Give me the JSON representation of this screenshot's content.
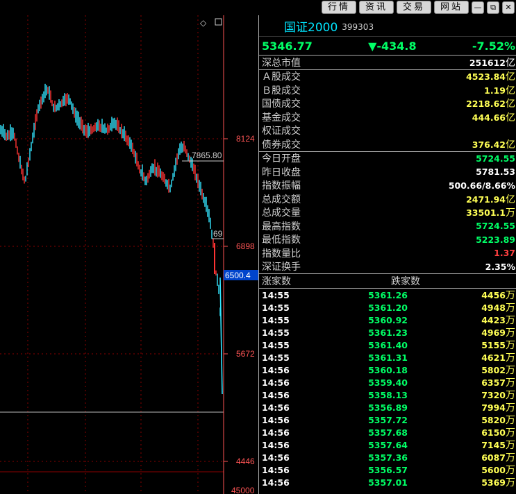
{
  "menu": {
    "quotes": "行情",
    "news": "资讯",
    "trade": "交易",
    "web": "网站"
  },
  "window": {
    "minimize": "—",
    "restore": "⧉",
    "close": "✕"
  },
  "chart": {
    "diamond": "◇",
    "y_labels": [
      "8124",
      "6898",
      "5672",
      "4446",
      "45000"
    ],
    "annotations": {
      "high": "7865.80",
      "low_partial": "69",
      "current": "6500.4"
    }
  },
  "header": {
    "name": "国证2000",
    "code": "399303"
  },
  "quote": {
    "price": "5346.77",
    "change": "▼-434.8",
    "pct": "-7.52%"
  },
  "market_value": {
    "label": "深总市值",
    "value": "251612",
    "unit": "亿"
  },
  "turnover": [
    {
      "label": "Ａ股成交",
      "value": "4523.84",
      "unit": "亿"
    },
    {
      "label": "Ｂ股成交",
      "value": "1.19",
      "unit": "亿"
    },
    {
      "label": "国债成交",
      "value": "2218.62",
      "unit": "亿"
    },
    {
      "label": "基金成交",
      "value": "444.66",
      "unit": "亿"
    },
    {
      "label": "权证成交",
      "value": "",
      "unit": ""
    },
    {
      "label": "债券成交",
      "value": "376.42",
      "unit": "亿"
    }
  ],
  "stats": [
    {
      "label": "今日开盘",
      "value": "5724.55",
      "unit": "",
      "color": "green"
    },
    {
      "label": "昨日收盘",
      "value": "5781.53",
      "unit": "",
      "color": "white"
    },
    {
      "label": "指数振幅",
      "value": "500.66/8.66%",
      "unit": "",
      "color": "white"
    },
    {
      "label": "总成交额",
      "value": "2471.94",
      "unit": "亿",
      "color": "yellow"
    },
    {
      "label": "总成交量",
      "value": "33501.1",
      "unit": "万",
      "color": "yellow"
    },
    {
      "label": "最高指数",
      "value": "5724.55",
      "unit": "",
      "color": "green"
    },
    {
      "label": "最低指数",
      "value": "5223.89",
      "unit": "",
      "color": "green"
    },
    {
      "label": "指数量比",
      "value": "1.37",
      "unit": "",
      "color": "red"
    },
    {
      "label": "深证换手",
      "value": "2.35%",
      "unit": "",
      "color": "white"
    }
  ],
  "ticks_header": {
    "up": "涨家数",
    "down": "跌家数"
  },
  "ticks": [
    {
      "time": "14:55",
      "price": "5361.26",
      "vol": "4456",
      "unit": "万"
    },
    {
      "time": "14:55",
      "price": "5361.20",
      "vol": "4948",
      "unit": "万"
    },
    {
      "time": "14:55",
      "price": "5360.92",
      "vol": "4423",
      "unit": "万"
    },
    {
      "time": "14:55",
      "price": "5361.23",
      "vol": "4969",
      "unit": "万"
    },
    {
      "time": "14:55",
      "price": "5361.40",
      "vol": "5155",
      "unit": "万"
    },
    {
      "time": "14:55",
      "price": "5361.31",
      "vol": "4621",
      "unit": "万"
    },
    {
      "time": "14:56",
      "price": "5360.18",
      "vol": "5802",
      "unit": "万"
    },
    {
      "time": "14:56",
      "price": "5359.40",
      "vol": "6357",
      "unit": "万"
    },
    {
      "time": "14:56",
      "price": "5358.13",
      "vol": "7320",
      "unit": "万"
    },
    {
      "time": "14:56",
      "price": "5356.89",
      "vol": "7994",
      "unit": "万"
    },
    {
      "time": "14:56",
      "price": "5357.72",
      "vol": "5820",
      "unit": "万"
    },
    {
      "time": "14:56",
      "price": "5357.68",
      "vol": "6150",
      "unit": "万"
    },
    {
      "time": "14:56",
      "price": "5357.64",
      "vol": "7145",
      "unit": "万"
    },
    {
      "time": "14:56",
      "price": "5357.36",
      "vol": "6087",
      "unit": "万"
    },
    {
      "time": "14:56",
      "price": "5356.57",
      "vol": "5600",
      "unit": "万"
    },
    {
      "time": "14:56",
      "price": "5357.01",
      "vol": "5369",
      "unit": "万"
    }
  ],
  "colors": {
    "up": "#ff3333",
    "down": "#33e5ff",
    "grid": "#8b0000",
    "axis": "#ff5555",
    "accent": "#00e5ff"
  }
}
